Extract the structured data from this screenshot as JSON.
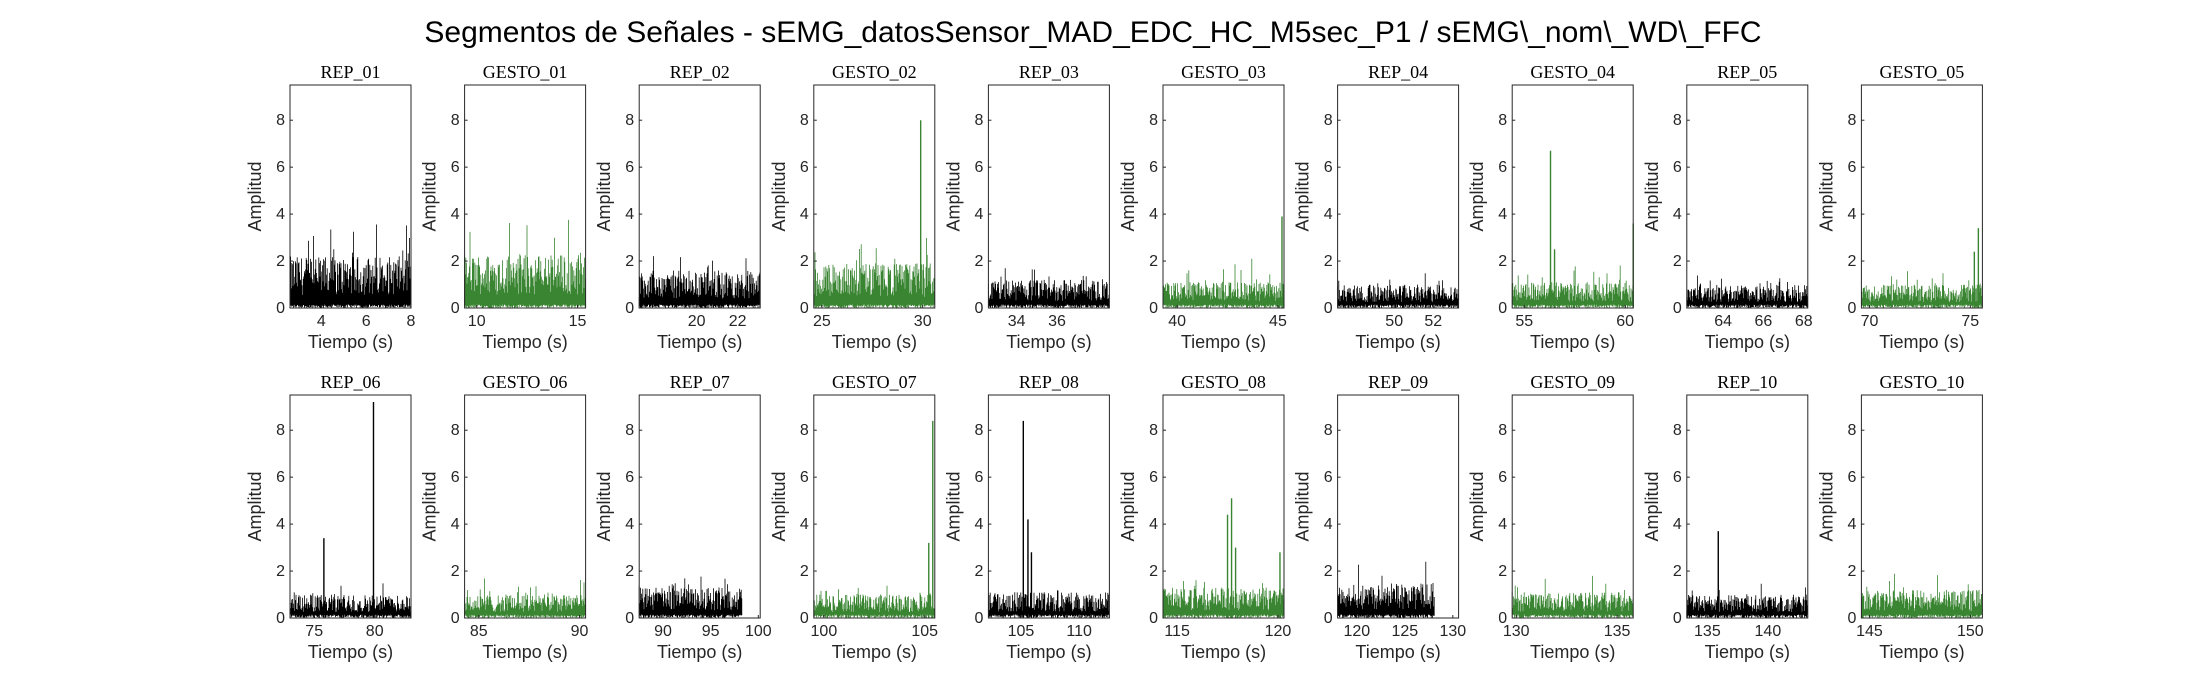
{
  "figure": {
    "title": "Segmentos de Señales - sEMG_datosSensor_MAD_EDC_HC_M5sec_P1 / sEMG\\_nom\\_WD\\_FFC"
  },
  "colors": {
    "rep": "#000000",
    "gesto": "#3a8532"
  },
  "chart_data": [
    {
      "type": "line",
      "title": "REP_01",
      "xlabel": "Tiempo (s)",
      "ylabel": "Amplitud",
      "xlim": [
        2.6,
        8
      ],
      "ylim": [
        0,
        9.5
      ],
      "xticks": [
        4,
        6,
        8
      ],
      "yticks": [
        0,
        2,
        4,
        6,
        8
      ],
      "color": "black",
      "series": [
        {
          "name": "REP_01",
          "x_range": [
            2.6,
            8
          ],
          "baseline": 2.2,
          "peak_max": 3.9,
          "spikes": []
        }
      ]
    },
    {
      "type": "line",
      "title": "GESTO_01",
      "xlabel": "Tiempo (s)",
      "ylabel": "Amplitud",
      "xlim": [
        9.4,
        15.4
      ],
      "ylim": [
        0,
        9.5
      ],
      "xticks": [
        10,
        15
      ],
      "yticks": [
        0,
        2,
        4,
        6,
        8
      ],
      "color": "green",
      "series": [
        {
          "name": "GESTO_01",
          "x_range": [
            9.4,
            15.4
          ],
          "baseline": 2.3,
          "peak_max": 4.0,
          "spikes": []
        }
      ]
    },
    {
      "type": "line",
      "title": "REP_02",
      "xlabel": "Tiempo (s)",
      "ylabel": "Amplitud",
      "xlim": [
        17.2,
        23.1
      ],
      "ylim": [
        0,
        9.5
      ],
      "xticks": [
        20,
        22
      ],
      "yticks": [
        0,
        2,
        4,
        6,
        8
      ],
      "color": "black",
      "series": [
        {
          "name": "REP_02",
          "x_range": [
            17.2,
            23.1
          ],
          "baseline": 1.6,
          "peak_max": 2.3,
          "spikes": []
        }
      ]
    },
    {
      "type": "line",
      "title": "GESTO_02",
      "xlabel": "Tiempo (s)",
      "ylabel": "Amplitud",
      "xlim": [
        24.6,
        30.6
      ],
      "ylim": [
        0,
        9.5
      ],
      "xticks": [
        25,
        30
      ],
      "yticks": [
        0,
        2,
        4,
        6,
        8
      ],
      "color": "green",
      "series": [
        {
          "name": "GESTO_02",
          "x_range": [
            24.6,
            30.6
          ],
          "baseline": 1.9,
          "peak_max": 3.2,
          "spikes": [
            [
              29.9,
              8.0
            ]
          ]
        }
      ]
    },
    {
      "type": "line",
      "title": "REP_03",
      "xlabel": "Tiempo (s)",
      "ylabel": "Amplitud",
      "xlim": [
        32.6,
        38.6
      ],
      "ylim": [
        0,
        9.5
      ],
      "xticks": [
        34,
        36
      ],
      "yticks": [
        0,
        2,
        4,
        6,
        8
      ],
      "color": "black",
      "series": [
        {
          "name": "REP_03",
          "x_range": [
            32.6,
            38.6
          ],
          "baseline": 1.2,
          "peak_max": 1.8,
          "spikes": []
        }
      ]
    },
    {
      "type": "line",
      "title": "GESTO_03",
      "xlabel": "Tiempo (s)",
      "ylabel": "Amplitud",
      "xlim": [
        39.3,
        45.3
      ],
      "ylim": [
        0,
        9.5
      ],
      "xticks": [
        40,
        45
      ],
      "yticks": [
        0,
        2,
        4,
        6,
        8
      ],
      "color": "green",
      "series": [
        {
          "name": "GESTO_03",
          "x_range": [
            39.3,
            45.3
          ],
          "baseline": 1.1,
          "peak_max": 2.2,
          "spikes": [
            [
              45.2,
              3.9
            ]
          ]
        }
      ]
    },
    {
      "type": "line",
      "title": "REP_04",
      "xlabel": "Tiempo (s)",
      "ylabel": "Amplitud",
      "xlim": [
        47.1,
        53.3
      ],
      "ylim": [
        0,
        9.5
      ],
      "xticks": [
        50,
        52
      ],
      "yticks": [
        0,
        2,
        4,
        6,
        8
      ],
      "color": "black",
      "series": [
        {
          "name": "REP_04",
          "x_range": [
            47.1,
            53.3
          ],
          "baseline": 1.0,
          "peak_max": 1.5,
          "spikes": []
        }
      ]
    },
    {
      "type": "line",
      "title": "GESTO_04",
      "xlabel": "Tiempo (s)",
      "ylabel": "Amplitud",
      "xlim": [
        54.4,
        60.4
      ],
      "ylim": [
        0,
        9.5
      ],
      "xticks": [
        55,
        60
      ],
      "yticks": [
        0,
        2,
        4,
        6,
        8
      ],
      "color": "green",
      "series": [
        {
          "name": "GESTO_04",
          "x_range": [
            54.4,
            60.4
          ],
          "baseline": 1.1,
          "peak_max": 2.0,
          "spikes": [
            [
              56.3,
              6.7
            ],
            [
              56.5,
              2.5
            ],
            [
              60.4,
              3.6
            ]
          ]
        }
      ]
    },
    {
      "type": "line",
      "title": "REP_05",
      "xlabel": "Tiempo (s)",
      "ylabel": "Amplitud",
      "xlim": [
        62.2,
        68.2
      ],
      "ylim": [
        0,
        9.5
      ],
      "xticks": [
        64,
        66,
        68
      ],
      "yticks": [
        0,
        2,
        4,
        6,
        8
      ],
      "color": "black",
      "series": [
        {
          "name": "REP_05",
          "x_range": [
            62.2,
            68.2
          ],
          "baseline": 1.0,
          "peak_max": 1.7,
          "spikes": []
        }
      ]
    },
    {
      "type": "line",
      "title": "GESTO_05",
      "xlabel": "Tiempo (s)",
      "ylabel": "Amplitud",
      "xlim": [
        69.6,
        75.6
      ],
      "ylim": [
        0,
        9.5
      ],
      "xticks": [
        70,
        75
      ],
      "yticks": [
        0,
        2,
        4,
        6,
        8
      ],
      "color": "green",
      "series": [
        {
          "name": "GESTO_05",
          "x_range": [
            69.6,
            75.6
          ],
          "baseline": 1.0,
          "peak_max": 1.6,
          "spikes": [
            [
              75.4,
              3.4
            ],
            [
              75.2,
              2.4
            ]
          ]
        }
      ]
    },
    {
      "type": "line",
      "title": "REP_06",
      "xlabel": "Tiempo (s)",
      "ylabel": "Amplitud",
      "xlim": [
        73,
        83
      ],
      "ylim": [
        0,
        9.5
      ],
      "xticks": [
        75,
        80
      ],
      "yticks": [
        0,
        2,
        4,
        6,
        8
      ],
      "color": "black",
      "series": [
        {
          "name": "REP_06",
          "x_range": [
            73,
            83
          ],
          "baseline": 1.0,
          "peak_max": 1.5,
          "spikes": [
            [
              75.8,
              3.4
            ],
            [
              79.9,
              9.2
            ]
          ]
        }
      ]
    },
    {
      "type": "line",
      "title": "GESTO_06",
      "xlabel": "Tiempo (s)",
      "ylabel": "Amplitud",
      "xlim": [
        84.3,
        90.3
      ],
      "ylim": [
        0,
        9.5
      ],
      "xticks": [
        85,
        90
      ],
      "yticks": [
        0,
        2,
        4,
        6,
        8
      ],
      "color": "green",
      "series": [
        {
          "name": "GESTO_06",
          "x_range": [
            84.3,
            90.3
          ],
          "baseline": 1.0,
          "peak_max": 1.7,
          "spikes": []
        }
      ]
    },
    {
      "type": "line",
      "title": "REP_07",
      "xlabel": "Tiempo (s)",
      "ylabel": "Amplitud",
      "xlim": [
        87.5,
        100.2
      ],
      "ylim": [
        0,
        9.5
      ],
      "xticks": [
        90,
        95,
        100
      ],
      "yticks": [
        0,
        2,
        4,
        6,
        8
      ],
      "color": "black",
      "series": [
        {
          "name": "REP_07",
          "x_range": [
            87.5,
            98.3
          ],
          "baseline": 1.3,
          "peak_max": 2.0,
          "spikes": []
        }
      ]
    },
    {
      "type": "line",
      "title": "GESTO_07",
      "xlabel": "Tiempo (s)",
      "ylabel": "Amplitud",
      "xlim": [
        99.5,
        105.5
      ],
      "ylim": [
        0,
        9.5
      ],
      "xticks": [
        100,
        105
      ],
      "yticks": [
        0,
        2,
        4,
        6,
        8
      ],
      "color": "green",
      "series": [
        {
          "name": "GESTO_07",
          "x_range": [
            99.5,
            105.5
          ],
          "baseline": 1.0,
          "peak_max": 1.6,
          "spikes": [
            [
              105.4,
              8.4
            ],
            [
              105.2,
              3.2
            ]
          ]
        }
      ]
    },
    {
      "type": "line",
      "title": "REP_08",
      "xlabel": "Tiempo (s)",
      "ylabel": "Amplitud",
      "xlim": [
        102.2,
        112.6
      ],
      "ylim": [
        0,
        9.5
      ],
      "xticks": [
        105,
        110
      ],
      "yticks": [
        0,
        2,
        4,
        6,
        8
      ],
      "color": "black",
      "series": [
        {
          "name": "REP_08",
          "x_range": [
            102.2,
            112.6
          ],
          "baseline": 1.1,
          "peak_max": 1.7,
          "spikes": [
            [
              105.2,
              8.4
            ],
            [
              105.6,
              4.2
            ],
            [
              105.9,
              2.8
            ]
          ]
        }
      ]
    },
    {
      "type": "line",
      "title": "GESTO_08",
      "xlabel": "Tiempo (s)",
      "ylabel": "Amplitud",
      "xlim": [
        114.3,
        120.3
      ],
      "ylim": [
        0,
        9.5
      ],
      "xticks": [
        115,
        120
      ],
      "yticks": [
        0,
        2,
        4,
        6,
        8
      ],
      "color": "green",
      "series": [
        {
          "name": "GESTO_08",
          "x_range": [
            114.3,
            120.3
          ],
          "baseline": 1.3,
          "peak_max": 2.0,
          "spikes": [
            [
              117.5,
              4.4
            ],
            [
              117.7,
              5.1
            ],
            [
              117.9,
              3.0
            ],
            [
              120.1,
              2.8
            ]
          ]
        }
      ]
    },
    {
      "type": "line",
      "title": "REP_09",
      "xlabel": "Tiempo (s)",
      "ylabel": "Amplitud",
      "xlim": [
        118,
        130.6
      ],
      "ylim": [
        0,
        9.5
      ],
      "xticks": [
        120,
        125,
        130
      ],
      "yticks": [
        0,
        2,
        4,
        6,
        8
      ],
      "color": "black",
      "series": [
        {
          "name": "REP_09",
          "x_range": [
            118,
            128.1
          ],
          "baseline": 1.5,
          "peak_max": 2.9,
          "spikes": []
        }
      ]
    },
    {
      "type": "line",
      "title": "GESTO_09",
      "xlabel": "Tiempo (s)",
      "ylabel": "Amplitud",
      "xlim": [
        129.8,
        135.8
      ],
      "ylim": [
        0,
        9.5
      ],
      "xticks": [
        130,
        135
      ],
      "yticks": [
        0,
        2,
        4,
        6,
        8
      ],
      "color": "green",
      "series": [
        {
          "name": "GESTO_09",
          "x_range": [
            129.8,
            135.8
          ],
          "baseline": 1.1,
          "peak_max": 1.8,
          "spikes": []
        }
      ]
    },
    {
      "type": "line",
      "title": "REP_10",
      "xlabel": "Tiempo (s)",
      "ylabel": "Amplitud",
      "xlim": [
        133.3,
        143.3
      ],
      "ylim": [
        0,
        9.5
      ],
      "xticks": [
        135,
        140
      ],
      "yticks": [
        0,
        2,
        4,
        6,
        8
      ],
      "color": "black",
      "series": [
        {
          "name": "REP_10",
          "x_range": [
            133.3,
            143.3
          ],
          "baseline": 1.0,
          "peak_max": 1.6,
          "spikes": [
            [
              135.9,
              3.7
            ]
          ]
        }
      ]
    },
    {
      "type": "line",
      "title": "GESTO_10",
      "xlabel": "Tiempo (s)",
      "ylabel": "Amplitud",
      "xlim": [
        144.6,
        150.6
      ],
      "ylim": [
        0,
        9.5
      ],
      "xticks": [
        145,
        150
      ],
      "yticks": [
        0,
        2,
        4,
        6,
        8
      ],
      "color": "green",
      "series": [
        {
          "name": "GESTO_10",
          "x_range": [
            144.6,
            150.6
          ],
          "baseline": 1.2,
          "peak_max": 2.0,
          "spikes": []
        }
      ]
    }
  ]
}
